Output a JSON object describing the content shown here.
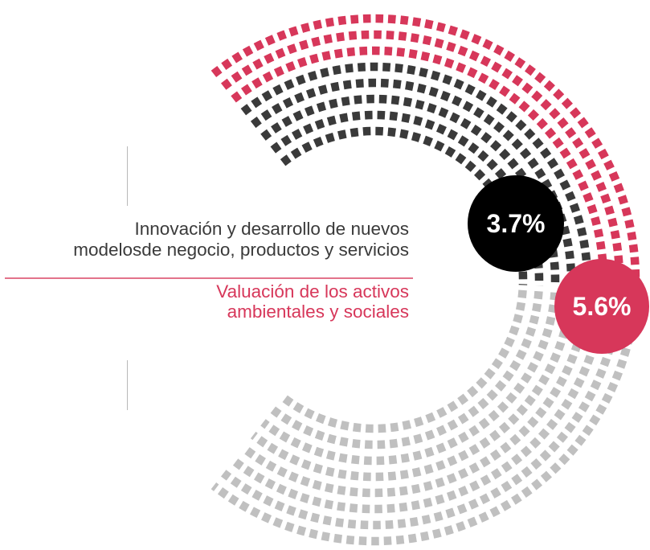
{
  "chart_data": {
    "type": "radial-bar",
    "series": [
      {
        "value": 3.7,
        "value_label": "3.7%",
        "label_lines": [
          "Innovación y desarrollo de nuevos",
          "modelosde negocio, productos y servicios"
        ],
        "color": "#3a3a3a"
      },
      {
        "value": 5.6,
        "value_label": "5.6%",
        "label_lines": [
          "Valuación de los activos",
          "ambientales y sociales"
        ],
        "color": "#d7375a"
      }
    ],
    "background_color": "#c0c0c0"
  }
}
